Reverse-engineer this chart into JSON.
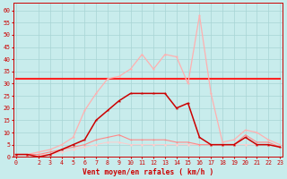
{
  "x": [
    0,
    1,
    2,
    3,
    4,
    5,
    6,
    7,
    8,
    9,
    10,
    11,
    12,
    13,
    14,
    15,
    16,
    17,
    18,
    19,
    20,
    21,
    22,
    23
  ],
  "gust_pink": [
    1,
    1,
    2,
    3,
    5,
    8,
    19,
    26,
    32,
    33,
    36,
    42,
    36,
    42,
    41,
    30,
    58,
    26,
    6,
    7,
    11,
    10,
    7,
    5
  ],
  "mean_dark": [
    1,
    1,
    0,
    1,
    3,
    5,
    7,
    15,
    19,
    23,
    26,
    26,
    26,
    26,
    20,
    22,
    8,
    5,
    5,
    5,
    8,
    5,
    5,
    4
  ],
  "ramp_pink2": [
    1,
    1,
    1,
    2,
    3,
    4,
    5,
    7,
    8,
    9,
    7,
    7,
    7,
    7,
    6,
    6,
    5,
    5,
    5,
    5,
    9,
    6,
    6,
    4
  ],
  "flat_bright": [
    32,
    32,
    32,
    32,
    32,
    32,
    32,
    32,
    32,
    32,
    32,
    32,
    32,
    32,
    32,
    32,
    32,
    32,
    32,
    32,
    32,
    32,
    32,
    32
  ],
  "low_line": [
    1,
    1,
    1,
    1,
    2,
    3,
    4,
    5,
    6,
    6,
    5,
    5,
    5,
    5,
    5,
    5,
    5,
    5,
    5,
    5,
    5,
    5,
    5,
    4
  ],
  "yticks": [
    0,
    5,
    10,
    15,
    20,
    25,
    30,
    35,
    40,
    45,
    50,
    55,
    60
  ],
  "xtick_pos": [
    0,
    2,
    3,
    4,
    5,
    6,
    7,
    8,
    9,
    10,
    11,
    12,
    13,
    14,
    15,
    16,
    17,
    18,
    19,
    20,
    21,
    22,
    23
  ],
  "xtick_labels": [
    "0",
    "2",
    "3",
    "4",
    "5",
    "6",
    "7",
    "8",
    "9",
    "10",
    "11",
    "12",
    "13",
    "14",
    "15",
    "16",
    "17",
    "18",
    "19",
    "20",
    "21",
    "22",
    "23"
  ],
  "ylim": [
    0,
    63
  ],
  "xlim": [
    -0.2,
    23.2
  ],
  "xlabel": "Vent moyen/en rafales ( km/h )",
  "bg_color": "#c8ecec",
  "grid_color": "#a8d4d4",
  "color_light_pink": "#ffb0b0",
  "color_dark_red": "#cc0000",
  "color_mid_pink": "#ff8888",
  "color_bright_red": "#ff2222",
  "color_pale": "#ffcccc"
}
